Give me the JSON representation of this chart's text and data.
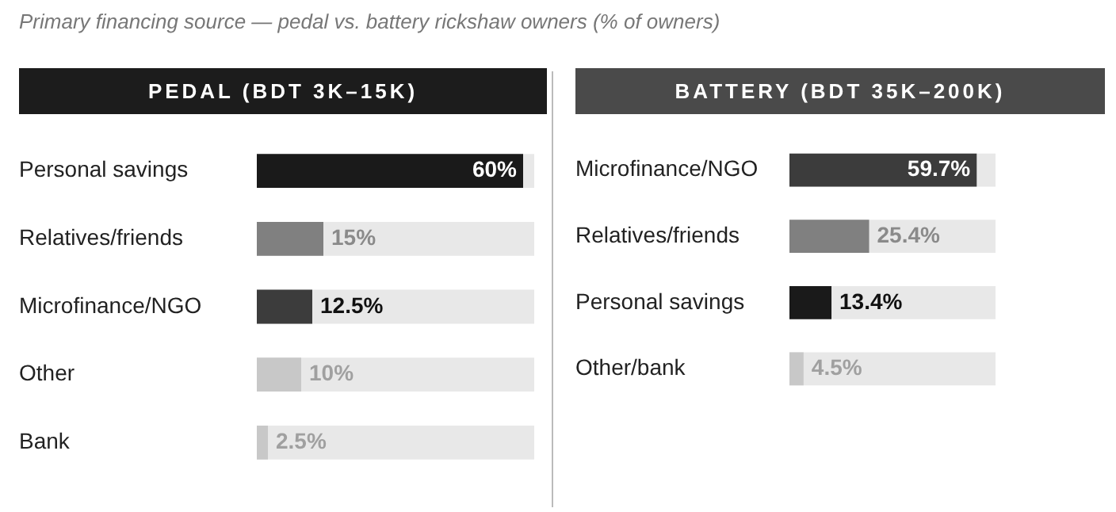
{
  "chart_data": [
    {
      "type": "bar",
      "orientation": "horizontal",
      "title": "PEDAL (BDT 3K–15K)",
      "annotations": [
        "Primary financing source — pedal vs. battery rickshaw owners (% of owners)"
      ],
      "categories": [
        "Personal savings",
        "Relatives/friends",
        "Microfinance/NGO",
        "Other",
        "Bank"
      ],
      "values": [
        60,
        15,
        12.5,
        10,
        2.5
      ],
      "colors": [
        "#1a1a1a",
        "#808080",
        "#3c3c3c",
        "#c8c8c8",
        "#c8c8c8"
      ],
      "value_labels": [
        "60%",
        "15%",
        "12.5%",
        "10%",
        "2.5%"
      ],
      "xlim": [
        0,
        62.5
      ],
      "tick_labels": "y",
      "legend": false
    },
    {
      "type": "bar",
      "orientation": "horizontal",
      "title": "BATTERY (BDT 35K–200K)",
      "categories": [
        "Microfinance/NGO",
        "Relatives/friends",
        "Personal savings",
        "Other/bank"
      ],
      "values": [
        59.7,
        25.4,
        13.4,
        4.5
      ],
      "colors": [
        "#3c3c3c",
        "#808080",
        "#1a1a1a",
        "#c8c8c8"
      ],
      "value_labels": [
        "59.7%",
        "25.4%",
        "13.4%",
        "4.5%"
      ],
      "xlim": [
        0,
        65.7
      ],
      "tick_labels": "y",
      "legend": false
    }
  ]
}
